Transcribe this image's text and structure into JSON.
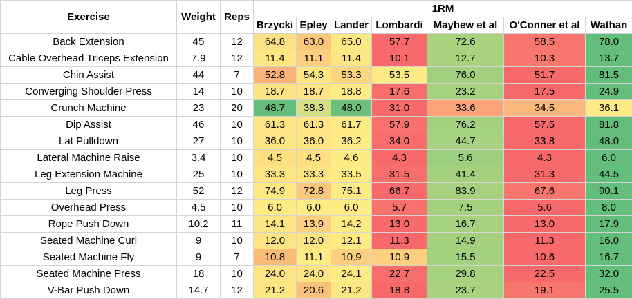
{
  "header": {
    "exercise": "Exercise",
    "weight": "Weight",
    "reps": "Reps",
    "group": "1RM",
    "formulas": [
      "Brzycki",
      "Epley",
      "Lander",
      "Lombardi",
      "Mayhew et al",
      "O'Conner et al",
      "Wathan"
    ]
  },
  "rows": [
    {
      "exercise": "Back Extension",
      "weight": "45",
      "reps": "12",
      "values": [
        "64.8",
        "63.0",
        "65.0",
        "57.7",
        "72.6",
        "58.5",
        "78.0"
      ],
      "colors": [
        "#fde283",
        "#fbc77b",
        "#fee883",
        "#f8696b",
        "#a9d27f",
        "#f8766d",
        "#63be7b"
      ]
    },
    {
      "exercise": "Cable Overhead Triceps Extension",
      "weight": "7.9",
      "reps": "12",
      "values": [
        "11.4",
        "11.1",
        "11.4",
        "10.1",
        "12.7",
        "10.3",
        "13.7"
      ],
      "colors": [
        "#fee683",
        "#fdcf7e",
        "#fee683",
        "#f8696b",
        "#a9d27f",
        "#f8766d",
        "#63be7b"
      ]
    },
    {
      "exercise": "Chin Assist",
      "weight": "44",
      "reps": "7",
      "values": [
        "52.8",
        "54.3",
        "53.3",
        "53.5",
        "76.0",
        "51.7",
        "81.5"
      ],
      "colors": [
        "#fbb379",
        "#fee683",
        "#fdd57f",
        "#ffeb84",
        "#a1d07e",
        "#f8696b",
        "#63be7b"
      ]
    },
    {
      "exercise": "Converging Shoulder Press",
      "weight": "14",
      "reps": "10",
      "values": [
        "18.7",
        "18.7",
        "18.8",
        "17.6",
        "23.2",
        "17.5",
        "24.9"
      ],
      "colors": [
        "#fee382",
        "#fee382",
        "#ffeb84",
        "#f86e6c",
        "#a6d17f",
        "#f8696b",
        "#63be7b"
      ]
    },
    {
      "exercise": "Crunch Machine",
      "weight": "23",
      "reps": "20",
      "values": [
        "48.7",
        "38.3",
        "48.0",
        "31.0",
        "33.6",
        "34.5",
        "36.1"
      ],
      "colors": [
        "#63be7b",
        "#d3df82",
        "#6bc07c",
        "#f8696b",
        "#fba477",
        "#fbb879",
        "#ffeb84"
      ]
    },
    {
      "exercise": "Dip Assist",
      "weight": "46",
      "reps": "10",
      "values": [
        "61.3",
        "61.3",
        "61.7",
        "57.9",
        "76.2",
        "57.5",
        "81.8"
      ],
      "colors": [
        "#fee482",
        "#fee482",
        "#ffeb84",
        "#f8716c",
        "#a3d17f",
        "#f8696b",
        "#63be7b"
      ]
    },
    {
      "exercise": "Lat Pulldown",
      "weight": "27",
      "reps": "10",
      "values": [
        "36.0",
        "36.0",
        "36.2",
        "34.0",
        "44.7",
        "33.8",
        "48.0"
      ],
      "colors": [
        "#fee482",
        "#fee482",
        "#ffeb84",
        "#f86d6c",
        "#a7d27f",
        "#f8696b",
        "#63be7b"
      ]
    },
    {
      "exercise": "Lateral Machine Raise",
      "weight": "3.4",
      "reps": "10",
      "values": [
        "4.5",
        "4.5",
        "4.6",
        "4.3",
        "5.6",
        "4.3",
        "6.0"
      ],
      "colors": [
        "#fee081",
        "#fee081",
        "#ffeb84",
        "#f8696b",
        "#9ccf7e",
        "#f8696b",
        "#63be7b"
      ]
    },
    {
      "exercise": "Leg Extension Machine",
      "weight": "25",
      "reps": "10",
      "values": [
        "33.3",
        "33.3",
        "33.5",
        "31.5",
        "41.4",
        "31.3",
        "44.5"
      ],
      "colors": [
        "#fee482",
        "#fee482",
        "#ffeb84",
        "#f86e6c",
        "#a5d17f",
        "#f8696b",
        "#63be7b"
      ]
    },
    {
      "exercise": "Leg Press",
      "weight": "52",
      "reps": "12",
      "values": [
        "74.9",
        "72.8",
        "75.1",
        "66.7",
        "83.9",
        "67.6",
        "90.1"
      ],
      "colors": [
        "#fee983",
        "#fbc87b",
        "#ffeb84",
        "#f8696b",
        "#a7d17f",
        "#f8766d",
        "#63be7b"
      ]
    },
    {
      "exercise": "Overhead Press",
      "weight": "4.5",
      "reps": "10",
      "values": [
        "6.0",
        "6.0",
        "6.0",
        "5.7",
        "7.5",
        "5.6",
        "8.0"
      ],
      "colors": [
        "#ffeb84",
        "#ffeb84",
        "#ffeb84",
        "#f8736d",
        "#a3d17f",
        "#f8696b",
        "#63be7b"
      ]
    },
    {
      "exercise": "Rope Push Down",
      "weight": "10.2",
      "reps": "11",
      "values": [
        "14.1",
        "13.9",
        "14.2",
        "13.0",
        "16.7",
        "13.0",
        "17.9"
      ],
      "colors": [
        "#fee683",
        "#fdd17f",
        "#ffeb84",
        "#f8696b",
        "#a6d17f",
        "#f8696b",
        "#63be7b"
      ]
    },
    {
      "exercise": "Seated Machine Curl",
      "weight": "9",
      "reps": "10",
      "values": [
        "12.0",
        "12.0",
        "12.1",
        "11.3",
        "14.9",
        "11.3",
        "16.0"
      ],
      "colors": [
        "#fee482",
        "#fee482",
        "#ffeb84",
        "#f8696b",
        "#a4d17f",
        "#f8696b",
        "#63be7b"
      ]
    },
    {
      "exercise": "Seated Machine Fly",
      "weight": "9",
      "reps": "7",
      "values": [
        "10.8",
        "11.1",
        "10.9",
        "10.9",
        "15.5",
        "10.6",
        "16.7"
      ],
      "colors": [
        "#fbbc7a",
        "#ffeb84",
        "#fdcf7e",
        "#fdcf7e",
        "#a4d17f",
        "#f8696b",
        "#63be7b"
      ]
    },
    {
      "exercise": "Seated Machine Press",
      "weight": "18",
      "reps": "10",
      "values": [
        "24.0",
        "24.0",
        "24.1",
        "22.7",
        "29.8",
        "22.5",
        "32.0"
      ],
      "colors": [
        "#fee482",
        "#fee482",
        "#ffeb84",
        "#f86e6c",
        "#a6d17f",
        "#f8696b",
        "#63be7b"
      ]
    },
    {
      "exercise": "V-Bar Push Down",
      "weight": "14.7",
      "reps": "12",
      "values": [
        "21.2",
        "20.6",
        "21.2",
        "18.8",
        "23.7",
        "19.1",
        "25.5"
      ],
      "colors": [
        "#fee683",
        "#fbc07a",
        "#fee683",
        "#f8696b",
        "#a8d27f",
        "#f8776d",
        "#63be7b"
      ]
    }
  ]
}
